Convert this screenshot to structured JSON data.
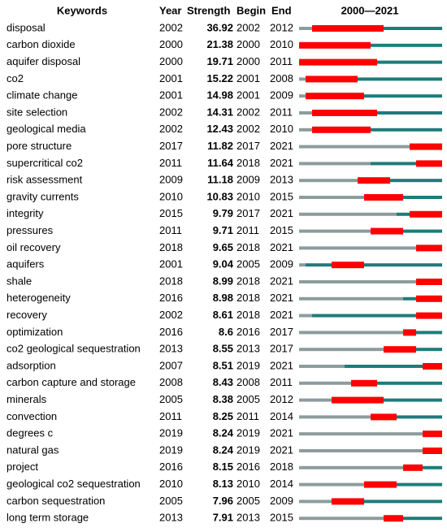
{
  "table": {
    "header": {
      "keywords": "Keywords",
      "year": "Year",
      "strength": "Strength",
      "begin": "Begin",
      "end": "End",
      "timeline": "2000—2021"
    },
    "timeline_range": [
      2000,
      2021
    ],
    "rows": [
      {
        "keyword": "disposal",
        "year": 2002,
        "strength": 36.92,
        "begin": 2002,
        "end": 2012
      },
      {
        "keyword": "carbon dioxide",
        "year": 2000,
        "strength": 21.38,
        "begin": 2000,
        "end": 2010
      },
      {
        "keyword": "aquifer disposal",
        "year": 2000,
        "strength": 19.71,
        "begin": 2000,
        "end": 2011
      },
      {
        "keyword": "co2",
        "year": 2001,
        "strength": 15.22,
        "begin": 2001,
        "end": 2008
      },
      {
        "keyword": "climate change",
        "year": 2001,
        "strength": 14.98,
        "begin": 2001,
        "end": 2009
      },
      {
        "keyword": "site selection",
        "year": 2002,
        "strength": 14.31,
        "begin": 2002,
        "end": 2011
      },
      {
        "keyword": "geological media",
        "year": 2002,
        "strength": 12.43,
        "begin": 2002,
        "end": 2010
      },
      {
        "keyword": "pore structure",
        "year": 2017,
        "strength": 11.82,
        "begin": 2017,
        "end": 2021
      },
      {
        "keyword": "supercritical co2",
        "year": 2011,
        "strength": 11.64,
        "begin": 2018,
        "end": 2021
      },
      {
        "keyword": "risk assessment",
        "year": 2009,
        "strength": 11.18,
        "begin": 2009,
        "end": 2013
      },
      {
        "keyword": "gravity currents",
        "year": 2010,
        "strength": 10.83,
        "begin": 2010,
        "end": 2015
      },
      {
        "keyword": "integrity",
        "year": 2015,
        "strength": 9.79,
        "begin": 2017,
        "end": 2021
      },
      {
        "keyword": "pressures",
        "year": 2011,
        "strength": 9.71,
        "begin": 2011,
        "end": 2015
      },
      {
        "keyword": "oil recovery",
        "year": 2018,
        "strength": 9.65,
        "begin": 2018,
        "end": 2021
      },
      {
        "keyword": "aquifers",
        "year": 2001,
        "strength": 9.04,
        "begin": 2005,
        "end": 2009
      },
      {
        "keyword": "shale",
        "year": 2018,
        "strength": 8.99,
        "begin": 2018,
        "end": 2021
      },
      {
        "keyword": "heterogeneity",
        "year": 2016,
        "strength": 8.98,
        "begin": 2018,
        "end": 2021
      },
      {
        "keyword": "recovery",
        "year": 2002,
        "strength": 8.61,
        "begin": 2018,
        "end": 2021
      },
      {
        "keyword": "optimization",
        "year": 2016,
        "strength": 8.6,
        "begin": 2016,
        "end": 2017
      },
      {
        "keyword": "co2 geological sequestration",
        "year": 2013,
        "strength": 8.55,
        "begin": 2013,
        "end": 2017
      },
      {
        "keyword": "adsorption",
        "year": 2007,
        "strength": 8.51,
        "begin": 2019,
        "end": 2021
      },
      {
        "keyword": "carbon capture and storage",
        "year": 2008,
        "strength": 8.43,
        "begin": 2008,
        "end": 2011
      },
      {
        "keyword": "minerals",
        "year": 2005,
        "strength": 8.38,
        "begin": 2005,
        "end": 2012
      },
      {
        "keyword": "convection",
        "year": 2011,
        "strength": 8.25,
        "begin": 2011,
        "end": 2014
      },
      {
        "keyword": "degrees c",
        "year": 2019,
        "strength": 8.24,
        "begin": 2019,
        "end": 2021
      },
      {
        "keyword": "natural gas",
        "year": 2019,
        "strength": 8.24,
        "begin": 2019,
        "end": 2021
      },
      {
        "keyword": "project",
        "year": 2016,
        "strength": 8.15,
        "begin": 2016,
        "end": 2018
      },
      {
        "keyword": "geological co2 sequestration",
        "year": 2010,
        "strength": 8.13,
        "begin": 2010,
        "end": 2014
      },
      {
        "keyword": "carbon sequestration",
        "year": 2005,
        "strength": 7.96,
        "begin": 2005,
        "end": 2009
      },
      {
        "keyword": "long term storage",
        "year": 2013,
        "strength": 7.91,
        "begin": 2013,
        "end": 2015
      }
    ],
    "colors": {
      "before": "#8c9c9c",
      "active": "#1f7b7b",
      "burst": "#ff0000"
    }
  }
}
